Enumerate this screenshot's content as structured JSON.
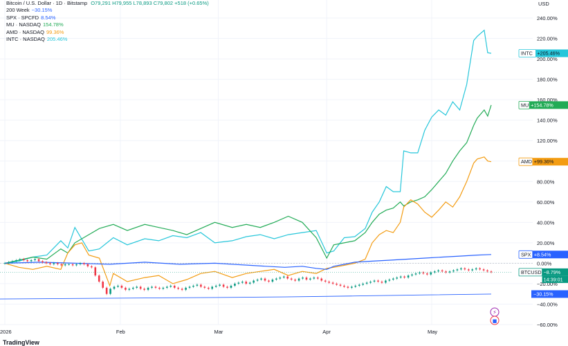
{
  "header": {
    "symbol": "Bitcoin / U.S. Dollar · 1D · Bitstamp",
    "ohlc": "O79,291 H79,955 L78,893 C79,802 +518 (+0.65%)"
  },
  "legend": [
    {
      "name": "200 Week",
      "value": "−30.15%",
      "color": "#2962ff"
    },
    {
      "name": "SPX · SPCFD",
      "value": "8.54%",
      "color": "#2962ff"
    },
    {
      "name": "MU · NASDAQ",
      "value": "154.78%",
      "color": "#22ab56"
    },
    {
      "name": "AMD · NASDAQ",
      "value": "99.36%",
      "color": "#f39c12"
    },
    {
      "name": "INTC · NASDAQ",
      "value": "205.46%",
      "color": "#26c6da"
    }
  ],
  "currency": "USD",
  "price_tags": [
    {
      "label": "INTC",
      "value": "+205.46%",
      "pct": 205.46,
      "color": "#26c6da",
      "dark_text": true
    },
    {
      "label": "MU",
      "value": "+154.78%",
      "pct": 154.78,
      "color": "#22ab56"
    },
    {
      "label": "AMD",
      "value": "+99.36%",
      "pct": 99.36,
      "color": "#f39c12",
      "dark_text": true
    },
    {
      "label": "SPX",
      "value": "+8.54%",
      "pct": 8.54,
      "color": "#2962ff"
    },
    {
      "label": "BTCUSD",
      "value": "−8.79%",
      "pct": -8.79,
      "color": "#089981",
      "sub": "14:39:01"
    },
    {
      "label": "",
      "value": "−30.15%",
      "pct": -30.15,
      "color": "#2962ff"
    }
  ],
  "watermark": "TradingView",
  "chart_data": {
    "type": "line",
    "title": "Bitcoin / U.S. Dollar · 1D · Bitstamp",
    "ylabel": "USD",
    "y_scale": "percent",
    "ylim": [
      -60,
      250
    ],
    "y_ticks": [
      "240.00%",
      "220.00%",
      "200.00%",
      "180.00%",
      "160.00%",
      "140.00%",
      "120.00%",
      "100.00%",
      "80.00%",
      "60.00%",
      "40.00%",
      "20.00%",
      "0.00%",
      "−20.00%",
      "−40.00%",
      "−60.00%"
    ],
    "y_tick_values": [
      240,
      220,
      200,
      180,
      160,
      140,
      120,
      100,
      80,
      60,
      40,
      20,
      0,
      -20,
      -40,
      -60
    ],
    "x_ticks": [
      "2026",
      "Feb",
      "Mar",
      "Apr",
      "May"
    ],
    "x_tick_values": [
      0,
      33,
      61,
      92,
      122
    ],
    "x_range": [
      -2,
      142
    ],
    "grid": true,
    "series": [
      {
        "name": "INTC · NASDAQ",
        "color": "#26c6da",
        "points": [
          [
            0,
            0
          ],
          [
            4,
            2
          ],
          [
            8,
            6
          ],
          [
            12,
            8
          ],
          [
            16,
            22
          ],
          [
            18,
            15
          ],
          [
            20,
            35
          ],
          [
            24,
            12
          ],
          [
            27,
            14
          ],
          [
            31,
            25
          ],
          [
            35,
            18
          ],
          [
            40,
            24
          ],
          [
            44,
            22
          ],
          [
            48,
            27
          ],
          [
            52,
            25
          ],
          [
            56,
            30
          ],
          [
            60,
            20
          ],
          [
            65,
            22
          ],
          [
            69,
            26
          ],
          [
            73,
            28
          ],
          [
            77,
            24
          ],
          [
            81,
            28
          ],
          [
            85,
            30
          ],
          [
            89,
            32
          ],
          [
            92,
            10
          ],
          [
            94,
            12
          ],
          [
            97,
            25
          ],
          [
            100,
            26
          ],
          [
            103,
            34
          ],
          [
            105,
            50
          ],
          [
            107,
            60
          ],
          [
            109,
            75
          ],
          [
            111,
            70
          ],
          [
            113,
            70
          ],
          [
            114,
            110
          ],
          [
            116,
            108
          ],
          [
            118,
            108
          ],
          [
            120,
            130
          ],
          [
            122,
            143
          ],
          [
            124,
            150
          ],
          [
            126,
            145
          ],
          [
            128,
            158
          ],
          [
            130,
            150
          ],
          [
            132,
            175
          ],
          [
            134,
            218
          ],
          [
            135,
            222
          ],
          [
            137,
            228
          ],
          [
            138,
            206
          ],
          [
            139,
            205.46
          ]
        ]
      },
      {
        "name": "MU · NASDAQ",
        "color": "#22ab56",
        "points": [
          [
            0,
            0
          ],
          [
            4,
            3
          ],
          [
            8,
            6
          ],
          [
            12,
            4
          ],
          [
            16,
            14
          ],
          [
            18,
            10
          ],
          [
            20,
            20
          ],
          [
            24,
            28
          ],
          [
            27,
            34
          ],
          [
            31,
            38
          ],
          [
            35,
            32
          ],
          [
            40,
            38
          ],
          [
            44,
            35
          ],
          [
            48,
            32
          ],
          [
            52,
            28
          ],
          [
            56,
            34
          ],
          [
            60,
            40
          ],
          [
            65,
            35
          ],
          [
            69,
            38
          ],
          [
            73,
            35
          ],
          [
            77,
            40
          ],
          [
            81,
            46
          ],
          [
            85,
            40
          ],
          [
            89,
            25
          ],
          [
            92,
            5
          ],
          [
            94,
            18
          ],
          [
            97,
            20
          ],
          [
            100,
            22
          ],
          [
            103,
            30
          ],
          [
            105,
            40
          ],
          [
            107,
            48
          ],
          [
            109,
            52
          ],
          [
            111,
            54
          ],
          [
            113,
            60
          ],
          [
            114,
            56
          ],
          [
            116,
            60
          ],
          [
            118,
            62
          ],
          [
            120,
            65
          ],
          [
            122,
            72
          ],
          [
            124,
            80
          ],
          [
            126,
            88
          ],
          [
            128,
            100
          ],
          [
            130,
            110
          ],
          [
            132,
            118
          ],
          [
            134,
            135
          ],
          [
            135,
            142
          ],
          [
            137,
            150
          ],
          [
            138,
            144
          ],
          [
            139,
            154.78
          ]
        ]
      },
      {
        "name": "AMD · NASDAQ",
        "color": "#f39c12",
        "points": [
          [
            0,
            0
          ],
          [
            4,
            -4
          ],
          [
            8,
            -6
          ],
          [
            12,
            -3
          ],
          [
            16,
            -6
          ],
          [
            18,
            10
          ],
          [
            20,
            18
          ],
          [
            22,
            20
          ],
          [
            24,
            8
          ],
          [
            27,
            5
          ],
          [
            30,
            -22
          ],
          [
            31,
            -10
          ],
          [
            35,
            -18
          ],
          [
            40,
            -14
          ],
          [
            44,
            -12
          ],
          [
            48,
            -20
          ],
          [
            52,
            -16
          ],
          [
            56,
            -10
          ],
          [
            60,
            -8
          ],
          [
            65,
            -14
          ],
          [
            69,
            -10
          ],
          [
            73,
            -8
          ],
          [
            77,
            -6
          ],
          [
            81,
            -12
          ],
          [
            85,
            -8
          ],
          [
            89,
            -10
          ],
          [
            92,
            -5
          ],
          [
            94,
            -4
          ],
          [
            97,
            -2
          ],
          [
            100,
            0
          ],
          [
            103,
            4
          ],
          [
            105,
            20
          ],
          [
            107,
            28
          ],
          [
            109,
            32
          ],
          [
            111,
            30
          ],
          [
            113,
            40
          ],
          [
            114,
            55
          ],
          [
            116,
            62
          ],
          [
            118,
            58
          ],
          [
            120,
            50
          ],
          [
            122,
            45
          ],
          [
            124,
            52
          ],
          [
            126,
            60
          ],
          [
            128,
            55
          ],
          [
            130,
            65
          ],
          [
            132,
            80
          ],
          [
            134,
            98
          ],
          [
            135,
            102
          ],
          [
            137,
            104
          ],
          [
            138,
            100
          ],
          [
            139,
            99.36
          ]
        ]
      },
      {
        "name": "SPX · SPCFD",
        "color": "#2962ff",
        "points": [
          [
            0,
            0
          ],
          [
            10,
            1
          ],
          [
            20,
            0
          ],
          [
            30,
            -1
          ],
          [
            35,
            0
          ],
          [
            40,
            1
          ],
          [
            50,
            -1
          ],
          [
            60,
            0
          ],
          [
            70,
            -2
          ],
          [
            80,
            -4
          ],
          [
            85,
            -3
          ],
          [
            89,
            -5
          ],
          [
            92,
            -6
          ],
          [
            94,
            -3
          ],
          [
            97,
            -1
          ],
          [
            100,
            1
          ],
          [
            105,
            2
          ],
          [
            110,
            3
          ],
          [
            115,
            4
          ],
          [
            120,
            5
          ],
          [
            125,
            6
          ],
          [
            130,
            7
          ],
          [
            135,
            8
          ],
          [
            139,
            8.54
          ]
        ]
      },
      {
        "name": "200 Week",
        "color": "#2962ff",
        "points": [
          [
            -2,
            -35
          ],
          [
            20,
            -34.5
          ],
          [
            40,
            -34
          ],
          [
            60,
            -33.5
          ],
          [
            80,
            -33
          ],
          [
            100,
            -32
          ],
          [
            120,
            -31
          ],
          [
            139,
            -30.15
          ]
        ]
      }
    ],
    "candles": {
      "name": "Bitcoin / U.S. Dollar",
      "up_color": "#089981",
      "down_color": "#f23645",
      "closes": [
        0,
        1,
        2,
        3,
        4,
        3,
        2,
        3,
        4,
        2,
        1,
        0,
        -1,
        0,
        -1,
        -2,
        -1,
        -1,
        -2,
        -1,
        0,
        -1,
        -3,
        -4,
        -12,
        -18,
        -24,
        -30,
        -25,
        -23,
        -22,
        -24,
        -26,
        -25,
        -24,
        -23,
        -25,
        -26,
        -24,
        -23,
        -24,
        -25,
        -24,
        -23,
        -22,
        -24,
        -25,
        -26,
        -24,
        -23,
        -22,
        -21,
        -23,
        -24,
        -25,
        -23,
        -22,
        -21,
        -23,
        -24,
        -22,
        -20,
        -19,
        -18,
        -20,
        -19,
        -17,
        -16,
        -15,
        -17,
        -18,
        -16,
        -15,
        -14,
        -13,
        -15,
        -16,
        -17,
        -15,
        -14,
        -16,
        -15,
        -14,
        -15,
        -17,
        -18,
        -19,
        -20,
        -21,
        -22,
        -23,
        -24,
        -23,
        -22,
        -21,
        -20,
        -19,
        -18,
        -17,
        -18,
        -19,
        -17,
        -16,
        -15,
        -14,
        -13,
        -14,
        -12,
        -11,
        -10,
        -9,
        -10,
        -11,
        -9,
        -8,
        -7,
        -8,
        -9,
        -8,
        -7,
        -6,
        -5,
        -6,
        -7,
        -6,
        -5,
        -6,
        -7,
        -8,
        -8.79
      ],
      "last": -8.79
    }
  }
}
